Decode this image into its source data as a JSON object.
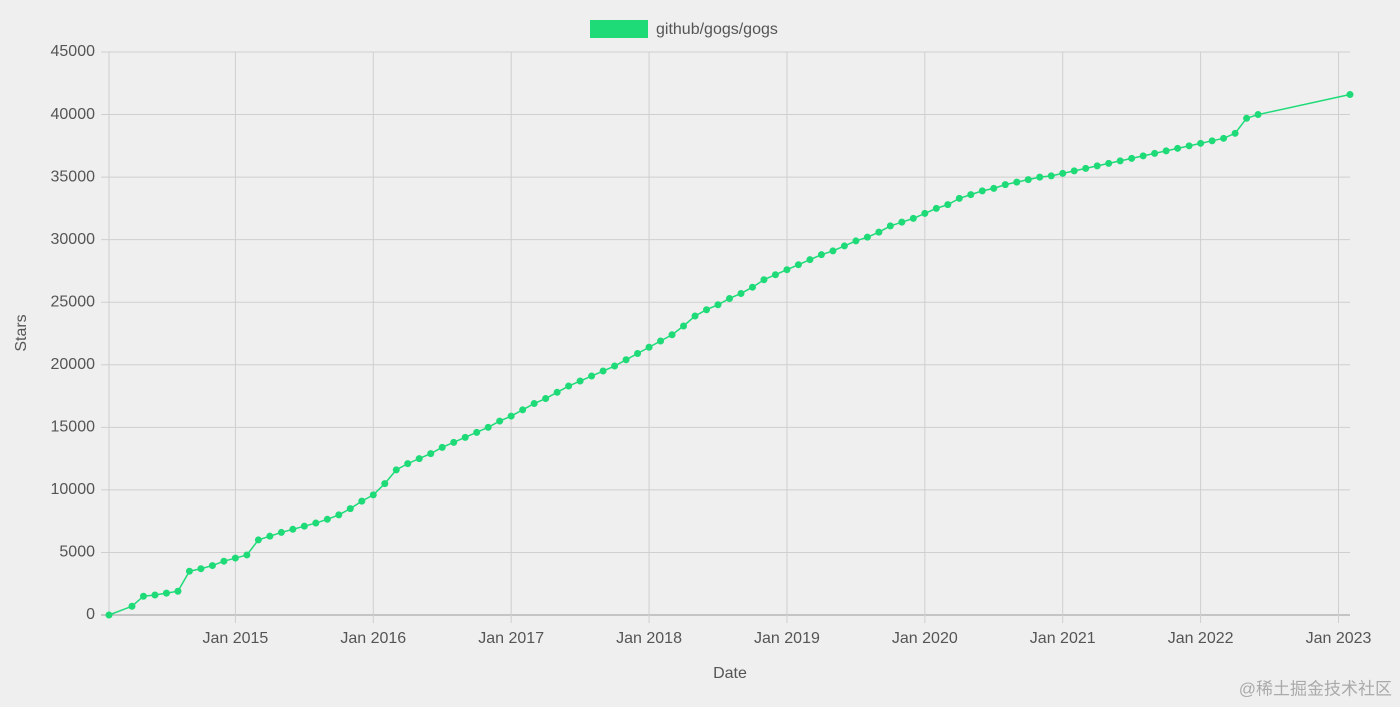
{
  "chart_data": {
    "type": "line",
    "x_label": "Date",
    "y_label": "Stars",
    "series": [
      {
        "name": "github/gogs/gogs",
        "color": "#1edb78",
        "x": [
          "2014-02",
          "2014-04",
          "2014-05",
          "2014-06",
          "2014-07",
          "2014-08",
          "2014-09",
          "2014-10",
          "2014-11",
          "2014-12",
          "2015-01",
          "2015-02",
          "2015-03",
          "2015-04",
          "2015-05",
          "2015-06",
          "2015-07",
          "2015-08",
          "2015-09",
          "2015-10",
          "2015-11",
          "2015-12",
          "2016-01",
          "2016-02",
          "2016-03",
          "2016-04",
          "2016-05",
          "2016-06",
          "2016-07",
          "2016-08",
          "2016-09",
          "2016-10",
          "2016-11",
          "2016-12",
          "2017-01",
          "2017-02",
          "2017-03",
          "2017-04",
          "2017-05",
          "2017-06",
          "2017-07",
          "2017-08",
          "2017-09",
          "2017-10",
          "2017-11",
          "2017-12",
          "2018-01",
          "2018-02",
          "2018-03",
          "2018-04",
          "2018-05",
          "2018-06",
          "2018-07",
          "2018-08",
          "2018-09",
          "2018-10",
          "2018-11",
          "2018-12",
          "2019-01",
          "2019-02",
          "2019-03",
          "2019-04",
          "2019-05",
          "2019-06",
          "2019-07",
          "2019-08",
          "2019-09",
          "2019-10",
          "2019-11",
          "2019-12",
          "2020-01",
          "2020-02",
          "2020-03",
          "2020-04",
          "2020-05",
          "2020-06",
          "2020-07",
          "2020-08",
          "2020-09",
          "2020-10",
          "2020-11",
          "2020-12",
          "2021-01",
          "2021-02",
          "2021-03",
          "2021-04",
          "2021-05",
          "2021-06",
          "2021-07",
          "2021-08",
          "2021-09",
          "2021-10",
          "2021-11",
          "2021-12",
          "2022-01",
          "2022-02",
          "2022-03",
          "2022-04",
          "2022-05",
          "2022-06",
          "2023-02"
        ],
        "values": [
          0,
          700,
          1500,
          1600,
          1750,
          1900,
          3500,
          3700,
          3950,
          4300,
          4550,
          4800,
          6000,
          6300,
          6600,
          6850,
          7100,
          7350,
          7650,
          8000,
          8500,
          9100,
          9600,
          10500,
          11600,
          12100,
          12500,
          12900,
          13400,
          13800,
          14200,
          14600,
          15000,
          15500,
          15900,
          16400,
          16900,
          17300,
          17800,
          18300,
          18700,
          19100,
          19500,
          19900,
          20400,
          20900,
          21400,
          21900,
          22400,
          23100,
          23900,
          24400,
          24800,
          25300,
          25700,
          26200,
          26800,
          27200,
          27600,
          28000,
          28400,
          28800,
          29100,
          29500,
          29900,
          30200,
          30600,
          31100,
          31400,
          31700,
          32100,
          32500,
          32800,
          33300,
          33600,
          33900,
          34100,
          34400,
          34600,
          34800,
          35000,
          35100,
          35300,
          35500,
          35700,
          35900,
          36100,
          36300,
          36500,
          36700,
          36900,
          37100,
          37300,
          37500,
          37700,
          37900,
          38100,
          38500,
          39700,
          40000,
          41600
        ]
      }
    ],
    "xlim": [
      "2014-02",
      "2023-02"
    ],
    "xticks": [
      {
        "value": "2015-01",
        "label": "Jan 2015"
      },
      {
        "value": "2016-01",
        "label": "Jan 2016"
      },
      {
        "value": "2017-01",
        "label": "Jan 2017"
      },
      {
        "value": "2018-01",
        "label": "Jan 2018"
      },
      {
        "value": "2019-01",
        "label": "Jan 2019"
      },
      {
        "value": "2020-01",
        "label": "Jan 2020"
      },
      {
        "value": "2021-01",
        "label": "Jan 2021"
      },
      {
        "value": "2022-01",
        "label": "Jan 2022"
      },
      {
        "value": "2023-01",
        "label": "Jan 2023"
      }
    ],
    "ylim": [
      0,
      45000
    ],
    "yticks": [
      0,
      5000,
      10000,
      15000,
      20000,
      25000,
      30000,
      35000,
      40000,
      45000
    ],
    "grid": true,
    "legend": "top",
    "watermark": "@稀土掘金技术社区"
  }
}
